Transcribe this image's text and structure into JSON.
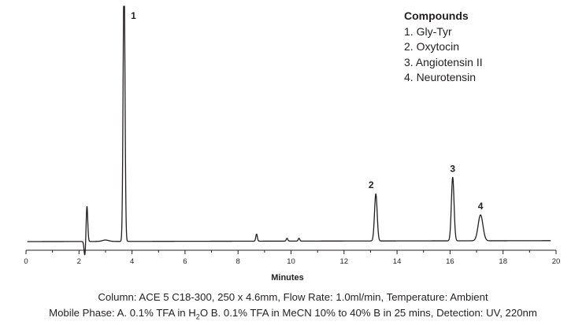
{
  "chart_data": {
    "type": "line",
    "xlabel": "Minutes",
    "ylabel": "",
    "xlim": [
      0,
      20
    ],
    "x_ticks": [
      "0",
      "2",
      "4",
      "6",
      "8",
      "10",
      "12",
      "14",
      "16",
      "18",
      "20"
    ],
    "grid": false,
    "peaks": [
      {
        "label": "1",
        "x": 3.7,
        "height": 1.0
      },
      {
        "label": "2",
        "x": 13.2,
        "height": 0.2
      },
      {
        "label": "3",
        "x": 16.1,
        "height": 0.27
      },
      {
        "label": "4",
        "x": 17.15,
        "height": 0.11
      }
    ],
    "minor_peaks": [
      {
        "x": 2.3,
        "height": 0.15
      },
      {
        "x": 8.7,
        "height": 0.03
      },
      {
        "x": 9.85,
        "height": 0.012
      },
      {
        "x": 10.3,
        "height": 0.012
      }
    ],
    "color": "#231f20"
  },
  "legend": {
    "title": "Compounds",
    "items": [
      "1. Gly-Tyr",
      "2. Oxytocin",
      "3. Angiotensin II",
      "4. Neurotensin"
    ]
  },
  "caption": {
    "line1": "Column: ACE 5 C18-300, 250 x 4.6mm, Flow Rate: 1.0ml/min, Temperature: Ambient",
    "line2_part1": "Mobile Phase: A. 0.1% TFA in H",
    "line2_sub": "2",
    "line2_part2": "O B. 0.1% TFA in MeCN 10% to 40% B in 25 mins, Detection: UV, 220nm"
  }
}
